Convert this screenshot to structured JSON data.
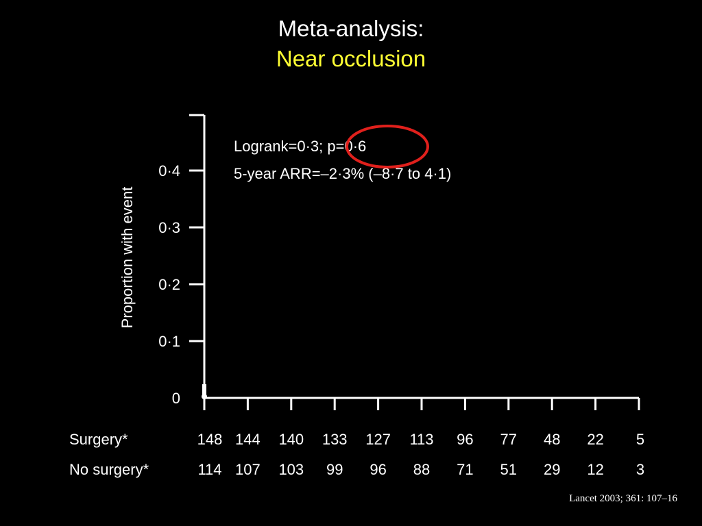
{
  "slide": {
    "title_line1": "Meta-analysis:",
    "title_line2": "Near occlusion",
    "citation": "Lancet 2003; 361: 107–16",
    "title_color": "#ffffff",
    "subtitle_color": "#ffff33",
    "highlight_color": "#e0201c"
  },
  "chart_data": {
    "type": "line",
    "title": "",
    "xlabel": "",
    "ylabel": "Proportion with event",
    "ylim": [
      0,
      0.5
    ],
    "yticks": [
      0,
      0.1,
      0.2,
      0.3,
      0.4
    ],
    "ytick_labels": [
      "0",
      "0·1",
      "0·2",
      "0·3",
      "0·4"
    ],
    "x_tick_count": 11,
    "annotations": [
      {
        "text": "Logrank=0·3; p=0·6"
      },
      {
        "text": "5-year ARR=–2·3% (–8·7 to 4·1)"
      }
    ],
    "highlight": "p=0·6",
    "at_risk": [
      {
        "label": "Surgery*",
        "values": [
          148,
          144,
          140,
          133,
          127,
          113,
          96,
          77,
          48,
          22,
          5
        ]
      },
      {
        "label": "No surgery*",
        "values": [
          114,
          107,
          103,
          99,
          96,
          88,
          71,
          51,
          29,
          12,
          3
        ]
      }
    ],
    "series": []
  }
}
